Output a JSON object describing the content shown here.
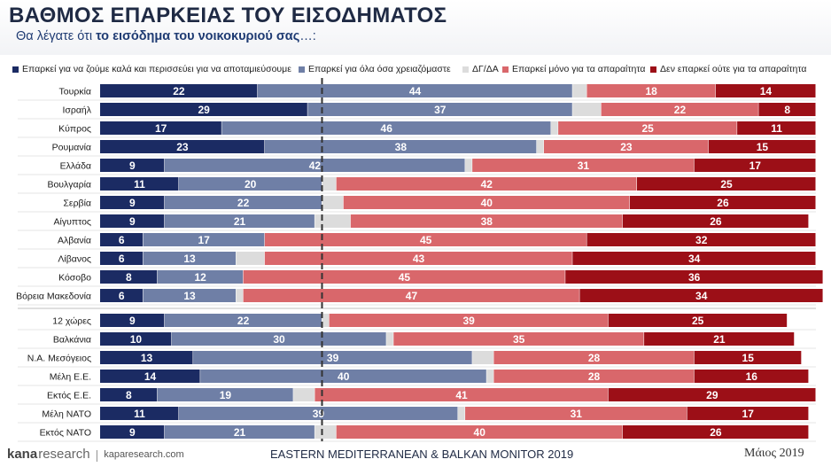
{
  "title": "ΒΑΘΜΟΣ ΕΠΑΡΚΕΙΑΣ ΤΟΥ ΕΙΣΟΔΗΜΑΤΟΣ",
  "subtitle_pre": "Θα λέγατε ότι ",
  "subtitle_bold": "το εισόδημα του νοικοκυριού σας",
  "subtitle_post": "…:",
  "footer": {
    "logo_kana": "kana",
    "logo_research": "research",
    "url": "kaparesearch.com",
    "center": "EASTERN MEDITERRANEAN & BALKAN MONITOR 2019",
    "date": "Μάιος 2019"
  },
  "chart_data": {
    "type": "bar",
    "orientation": "horizontal-stacked",
    "unit": "%",
    "series": [
      {
        "name": "Επαρκεί για να ζούμε καλά και περισσεύει για να αποταμιεύσουμε",
        "color": "#1b2b63"
      },
      {
        "name": "Επαρκεί για όλα όσα χρειαζόμαστε",
        "color": "#6f7fa6"
      },
      {
        "name": "ΔΓ/ΔΑ",
        "color": "#dcdcdc"
      },
      {
        "name": "Επαρκεί μόνο για τα απαραίτητα",
        "color": "#d9676b"
      },
      {
        "name": "Δεν επαρκεί ούτε για τα απαραίτητα",
        "color": "#9c0f17"
      }
    ],
    "groups": [
      {
        "rows": [
          {
            "label": "Τουρκία",
            "values": [
              22,
              44,
              2,
              18,
              14
            ]
          },
          {
            "label": "Ισραήλ",
            "values": [
              29,
              37,
              4,
              22,
              8
            ]
          },
          {
            "label": "Κύπρος",
            "values": [
              17,
              46,
              1,
              25,
              11
            ]
          },
          {
            "label": "Ρουμανία",
            "values": [
              23,
              38,
              1,
              23,
              15
            ]
          },
          {
            "label": "Ελλάδα",
            "values": [
              9,
              42,
              1,
              31,
              17
            ]
          },
          {
            "label": "Βουλγαρία",
            "values": [
              11,
              20,
              2,
              42,
              25
            ]
          },
          {
            "label": "Σερβία",
            "values": [
              9,
              22,
              3,
              40,
              26
            ]
          },
          {
            "label": "Αίγυπτος",
            "values": [
              9,
              21,
              5,
              38,
              26
            ]
          },
          {
            "label": "Αλβανία",
            "values": [
              6,
              17,
              0,
              45,
              32
            ]
          },
          {
            "label": "Λίβανος",
            "values": [
              6,
              13,
              4,
              43,
              34
            ]
          },
          {
            "label": "Κόσοβο",
            "values": [
              8,
              12,
              0,
              45,
              36
            ]
          },
          {
            "label": "Βόρεια Μακεδονία",
            "values": [
              6,
              13,
              1,
              47,
              34
            ]
          }
        ]
      },
      {
        "rows": [
          {
            "label": "12 χώρες",
            "values": [
              9,
              22,
              1,
              39,
              25
            ]
          },
          {
            "label": "Βαλκάνια",
            "values": [
              10,
              30,
              1,
              35,
              21
            ]
          },
          {
            "label": "Ν.Α. Μεσόγειος",
            "values": [
              13,
              39,
              3,
              28,
              15
            ]
          },
          {
            "label": "Μέλη Ε.Ε.",
            "values": [
              14,
              40,
              1,
              28,
              16
            ]
          },
          {
            "label": "Εκτός Ε.Ε.",
            "values": [
              8,
              19,
              3,
              41,
              29
            ]
          },
          {
            "label": "Μέλη ΝΑΤΟ",
            "values": [
              11,
              39,
              1,
              31,
              17
            ]
          },
          {
            "label": "Εκτός ΝΑΤΟ",
            "values": [
              9,
              21,
              3,
              40,
              26
            ]
          }
        ]
      }
    ],
    "xlim": [
      0,
      100
    ],
    "reference_line_at": 31
  }
}
